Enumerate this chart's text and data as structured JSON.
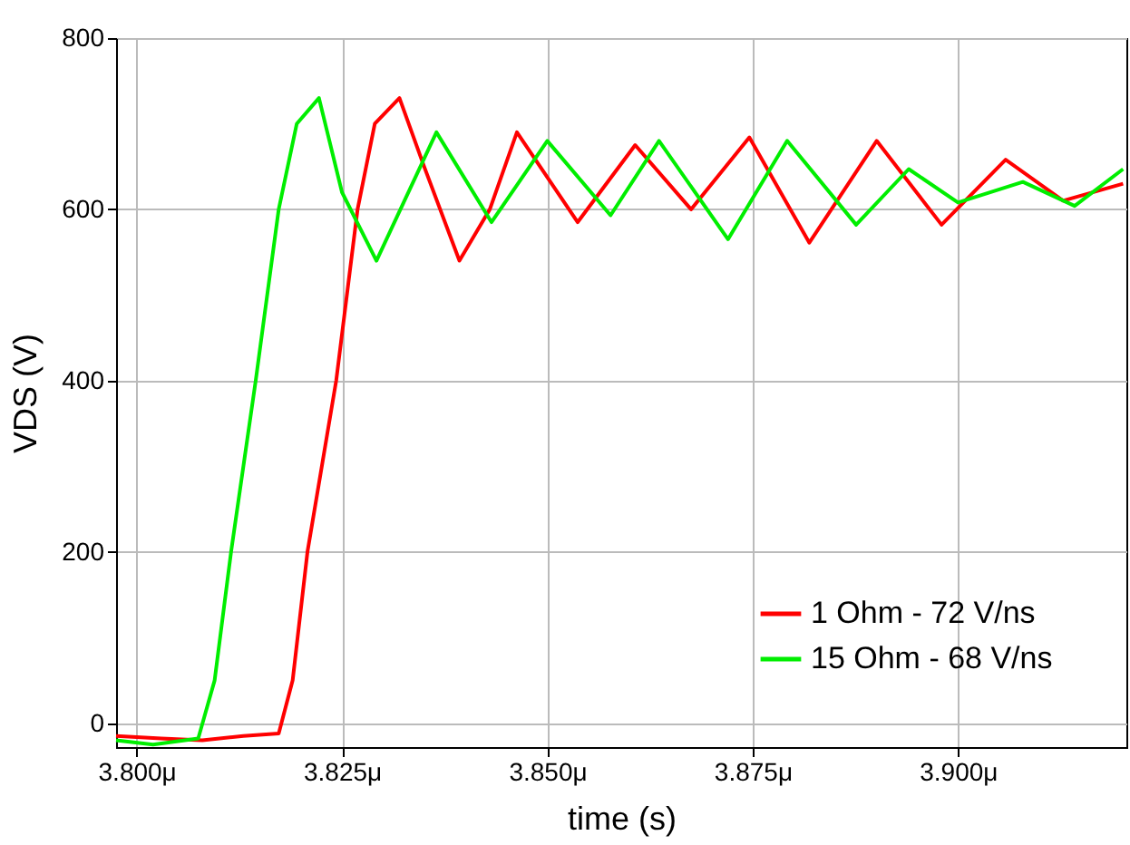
{
  "chart_data": {
    "type": "line",
    "xlabel": "time (s)",
    "ylabel": "VDS (V)",
    "xlim": [
      3.7975,
      3.9205
    ],
    "ylim": [
      -28,
      800
    ],
    "xticks": [
      {
        "value": 3.8,
        "label": "3.800μ"
      },
      {
        "value": 3.825,
        "label": "3.825μ"
      },
      {
        "value": 3.85,
        "label": "3.850μ"
      },
      {
        "value": 3.875,
        "label": "3.875μ"
      },
      {
        "value": 3.9,
        "label": "3.900μ"
      }
    ],
    "yticks": [
      0,
      200,
      400,
      600,
      800
    ],
    "grid": true,
    "legend": "bottom right",
    "line_style": "solid",
    "marker": "none",
    "series": [
      {
        "name": "1 Ohm - 72 V/ns",
        "color": "#ff0000",
        "x": [
          3.7975,
          3.803,
          3.808,
          3.813,
          3.8173,
          3.819,
          3.8208,
          3.8243,
          3.8269,
          3.829,
          3.832,
          3.835,
          3.8393,
          3.843,
          3.8463,
          3.8537,
          3.8607,
          3.8675,
          3.8746,
          3.8819,
          3.8901,
          3.898,
          3.9058,
          3.9128,
          3.9201
        ],
        "values": [
          -15,
          -18,
          -20,
          -15,
          -12,
          50,
          200,
          400,
          600,
          700,
          730,
          650,
          540,
          600,
          690,
          585,
          675,
          600,
          684,
          561,
          680,
          582,
          658,
          610,
          630
        ]
      },
      {
        "name": "15 Ohm - 68 V/ns",
        "color": "#00ee00",
        "x": [
          3.7975,
          3.802,
          3.8075,
          3.8095,
          3.8115,
          3.8145,
          3.8173,
          3.8195,
          3.8222,
          3.825,
          3.8292,
          3.8365,
          3.8432,
          3.85,
          3.8577,
          3.8636,
          3.872,
          3.8792,
          3.8876,
          3.894,
          3.9,
          3.9079,
          3.9142,
          3.9201
        ],
        "values": [
          -20,
          -25,
          -18,
          50,
          200,
          400,
          600,
          700,
          730,
          620,
          540,
          690,
          585,
          680,
          593,
          680,
          565,
          680,
          582,
          647,
          608,
          632,
          604,
          647
        ]
      }
    ]
  }
}
